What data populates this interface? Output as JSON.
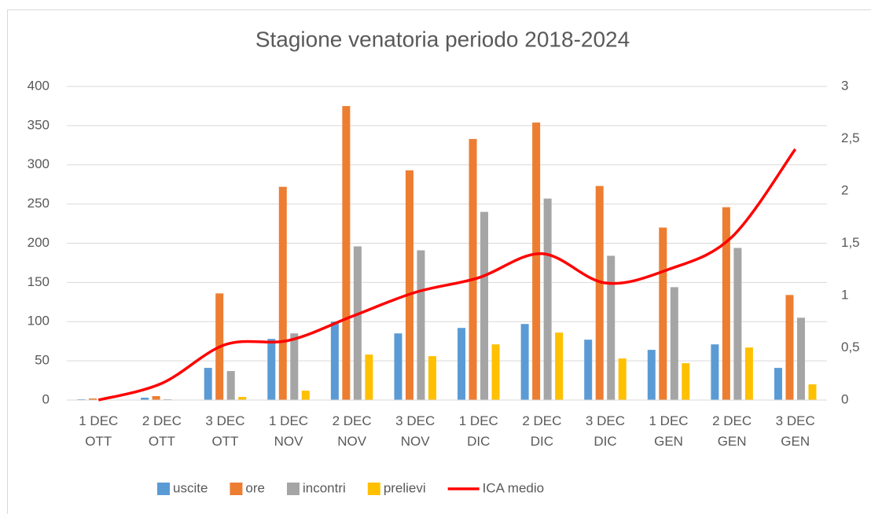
{
  "chart_data": {
    "type": "bar-line",
    "title": "Stagione venatoria  periodo 2018-2024",
    "categories": [
      "1 DEC OTT",
      "2 DEC OTT",
      "3 DEC OTT",
      "1 DEC NOV",
      "2 DEC NOV",
      "3 DEC NOV",
      "1 DEC DIC",
      "2 DEC DIC",
      "3 DEC DIC",
      "1 DEC GEN",
      "2 DEC GEN",
      "3 DEC GEN"
    ],
    "series": [
      {
        "name": "uscite",
        "color": "#5b9bd5",
        "values": [
          1,
          3,
          41,
          78,
          100,
          85,
          92,
          97,
          77,
          64,
          71,
          41
        ]
      },
      {
        "name": "ore",
        "color": "#ed7d31",
        "values": [
          2,
          5,
          136,
          272,
          375,
          293,
          333,
          354,
          273,
          220,
          246,
          134
        ]
      },
      {
        "name": "incontri",
        "color": "#a5a5a5",
        "values": [
          0,
          1,
          37,
          85,
          196,
          191,
          240,
          257,
          184,
          144,
          194,
          105
        ]
      },
      {
        "name": "prelievi",
        "color": "#ffc000",
        "values": [
          0,
          0,
          4,
          12,
          58,
          56,
          71,
          86,
          53,
          47,
          67,
          20
        ]
      },
      {
        "name": "ICA medio",
        "color": "#ff0000",
        "axis": "y2",
        "type": "line",
        "smooth": true,
        "values": [
          0,
          0.16,
          0.53,
          0.57,
          0.8,
          1.03,
          1.17,
          1.4,
          1.12,
          1.25,
          1.56,
          2.4
        ]
      }
    ],
    "ylim": [
      0,
      400
    ],
    "yticks": [
      0,
      50,
      100,
      150,
      200,
      250,
      300,
      350,
      400
    ],
    "y2lim": [
      0,
      3
    ],
    "y2ticks": [
      0,
      {
        "value": 0.5,
        "label": "0,5"
      },
      1,
      {
        "value": 1.5,
        "label": "1,5"
      },
      2,
      {
        "value": 2.5,
        "label": "2,5"
      },
      3
    ],
    "grid": true,
    "legend": "bottom"
  }
}
